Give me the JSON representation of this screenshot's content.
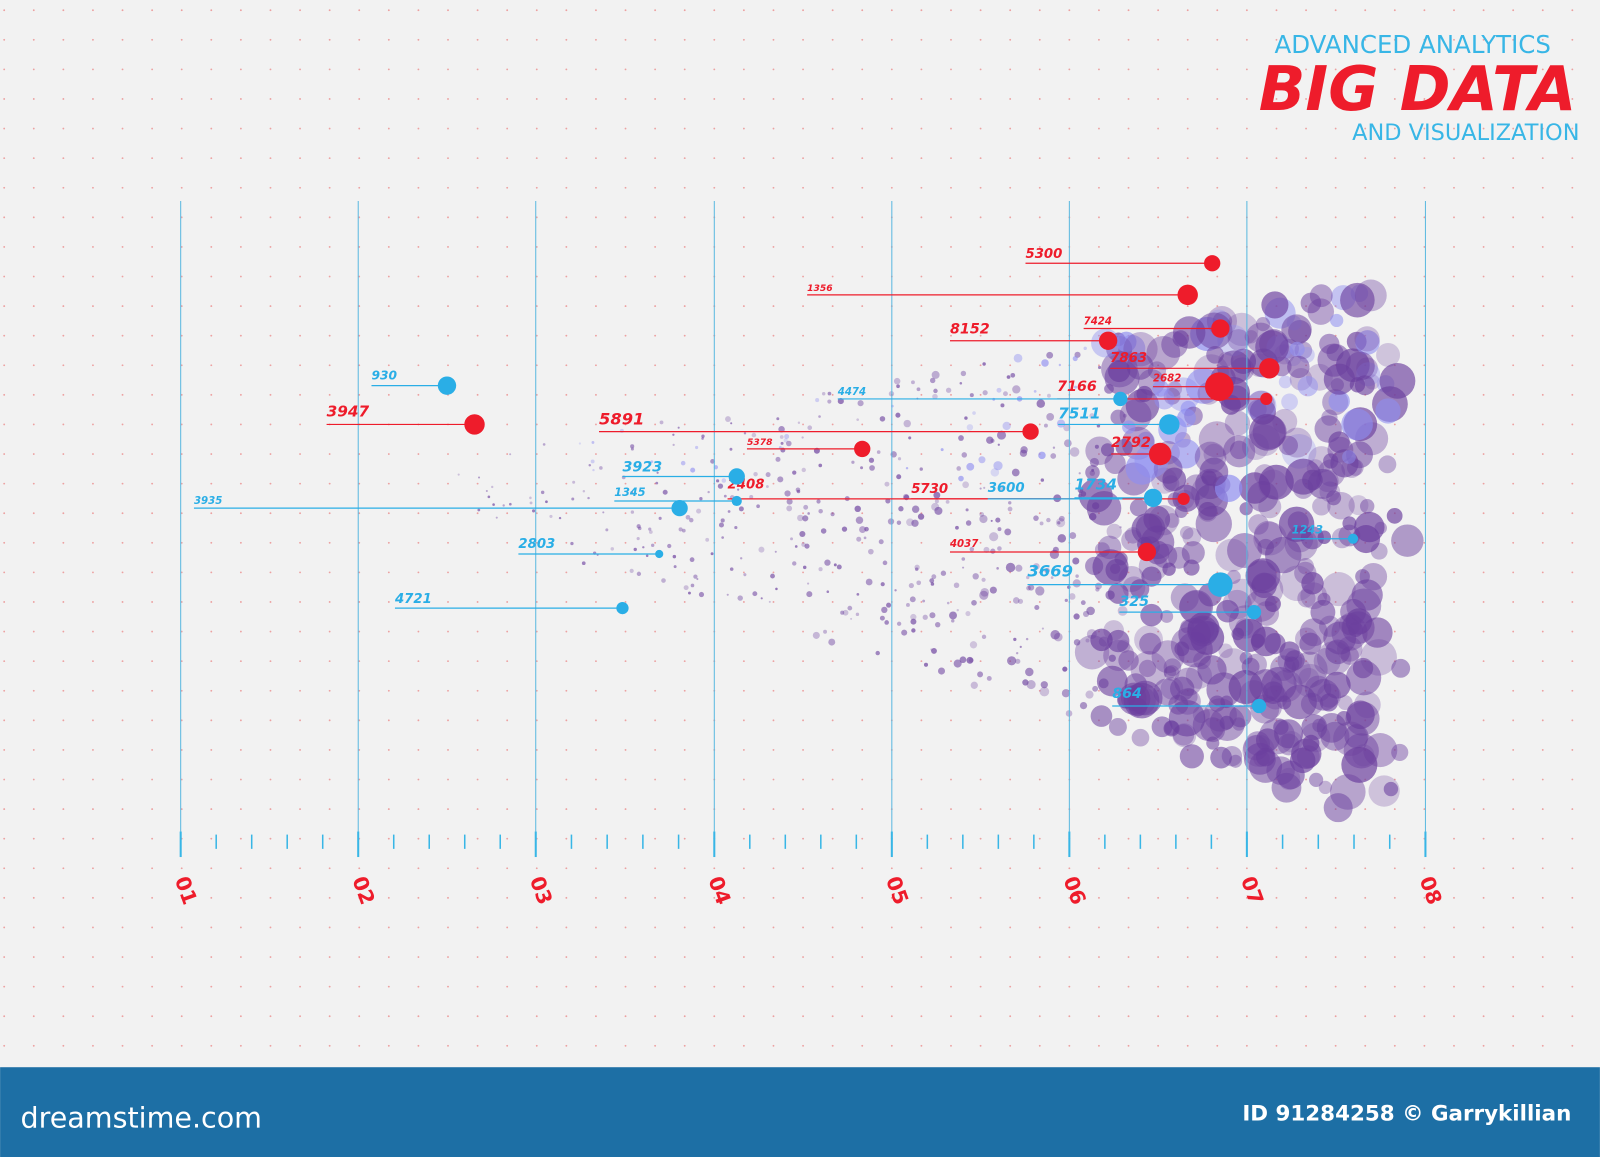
{
  "header": {
    "kicker": "ADVANCED ANALYTICS",
    "title": "BIG DATA",
    "subtitle": "AND VISUALIZATION"
  },
  "axis_labels": [
    "01",
    "02",
    "03",
    "04",
    "05",
    "06",
    "07",
    "08"
  ],
  "labels": [
    {
      "text": "5300",
      "color": "red"
    },
    {
      "text": "1356",
      "color": "red"
    },
    {
      "text": "7424",
      "color": "red"
    },
    {
      "text": "8152",
      "color": "red"
    },
    {
      "text": "7863",
      "color": "red"
    },
    {
      "text": "2682",
      "color": "red"
    },
    {
      "text": "7166",
      "color": "red"
    },
    {
      "text": "3947",
      "color": "red"
    },
    {
      "text": "5891",
      "color": "red"
    },
    {
      "text": "5378",
      "color": "red"
    },
    {
      "text": "2792",
      "color": "red"
    },
    {
      "text": "2408",
      "color": "red"
    },
    {
      "text": "5730",
      "color": "red"
    },
    {
      "text": "4037",
      "color": "red"
    },
    {
      "text": "930",
      "color": "blue"
    },
    {
      "text": "4474",
      "color": "blue"
    },
    {
      "text": "7511",
      "color": "blue"
    },
    {
      "text": "3923",
      "color": "blue"
    },
    {
      "text": "1345",
      "color": "blue"
    },
    {
      "text": "3935",
      "color": "blue"
    },
    {
      "text": "3600",
      "color": "blue"
    },
    {
      "text": "1734",
      "color": "blue"
    },
    {
      "text": "1243",
      "color": "blue"
    },
    {
      "text": "2803",
      "color": "blue"
    },
    {
      "text": "3669",
      "color": "blue"
    },
    {
      "text": "325",
      "color": "blue"
    },
    {
      "text": "4721",
      "color": "blue"
    },
    {
      "text": "864",
      "color": "blue"
    }
  ],
  "footer": {
    "brand": "dreamstime.com",
    "id": "ID 91284258 © Garrykillian"
  }
}
